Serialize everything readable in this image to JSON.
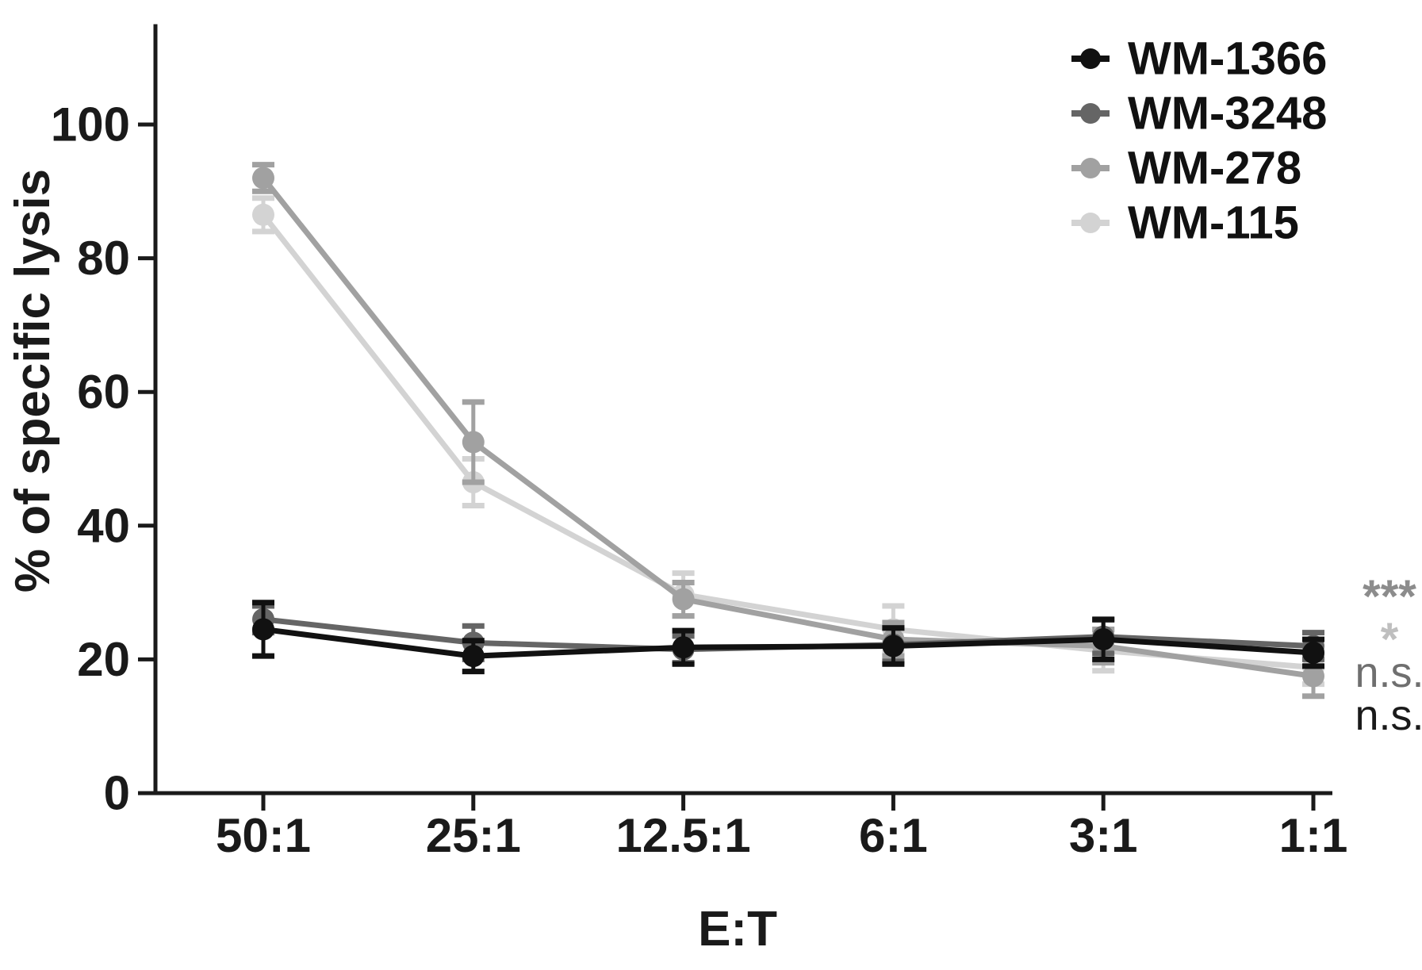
{
  "figure": {
    "background": "#ffffff",
    "axis_color": "#1a1a1a"
  },
  "chart_data": {
    "type": "line",
    "title": "",
    "xlabel": "E:T",
    "ylabel": "% of specific lysis",
    "categories": [
      "50:1",
      "25:1",
      "12.5:1",
      "6:1",
      "3:1",
      "1:1"
    ],
    "y_ticks": [
      0,
      20,
      40,
      60,
      80,
      100
    ],
    "ylim": [
      0,
      115
    ],
    "grid": false,
    "legend_position": "top-right",
    "series": [
      {
        "name": "WM-1366",
        "color": "#111111",
        "marker": "circle",
        "values": [
          24.5,
          20.5,
          21.8,
          22.0,
          23.0,
          21.0
        ],
        "errors": [
          4.0,
          2.3,
          2.5,
          2.7,
          3.0,
          2.0
        ]
      },
      {
        "name": "WM-3248",
        "color": "#656565",
        "marker": "circle",
        "values": [
          26.0,
          22.5,
          21.5,
          22.2,
          23.4,
          22.0
        ],
        "errors": [
          2.0,
          2.5,
          2.0,
          2.5,
          2.5,
          2.0
        ]
      },
      {
        "name": "WM-278",
        "color": "#a1a1a1",
        "marker": "circle",
        "values": [
          92.0,
          52.5,
          29.0,
          23.0,
          22.0,
          17.5
        ],
        "errors": [
          2.0,
          6.0,
          2.5,
          2.5,
          2.5,
          3.0
        ]
      },
      {
        "name": "WM-115",
        "color": "#d3d3d3",
        "marker": "circle",
        "values": [
          86.5,
          46.5,
          29.7,
          24.5,
          21.3,
          18.8
        ],
        "errors": [
          2.5,
          3.5,
          3.2,
          3.5,
          3.0,
          2.5
        ]
      }
    ],
    "annotations": [
      {
        "text": "***",
        "color": "#8c8c8c"
      },
      {
        "text": "*",
        "color": "#bfbfbf"
      },
      {
        "text": "n.s.",
        "color": "#6f6f6f"
      },
      {
        "text": "n.s.",
        "color": "#1a1a1a"
      }
    ]
  }
}
